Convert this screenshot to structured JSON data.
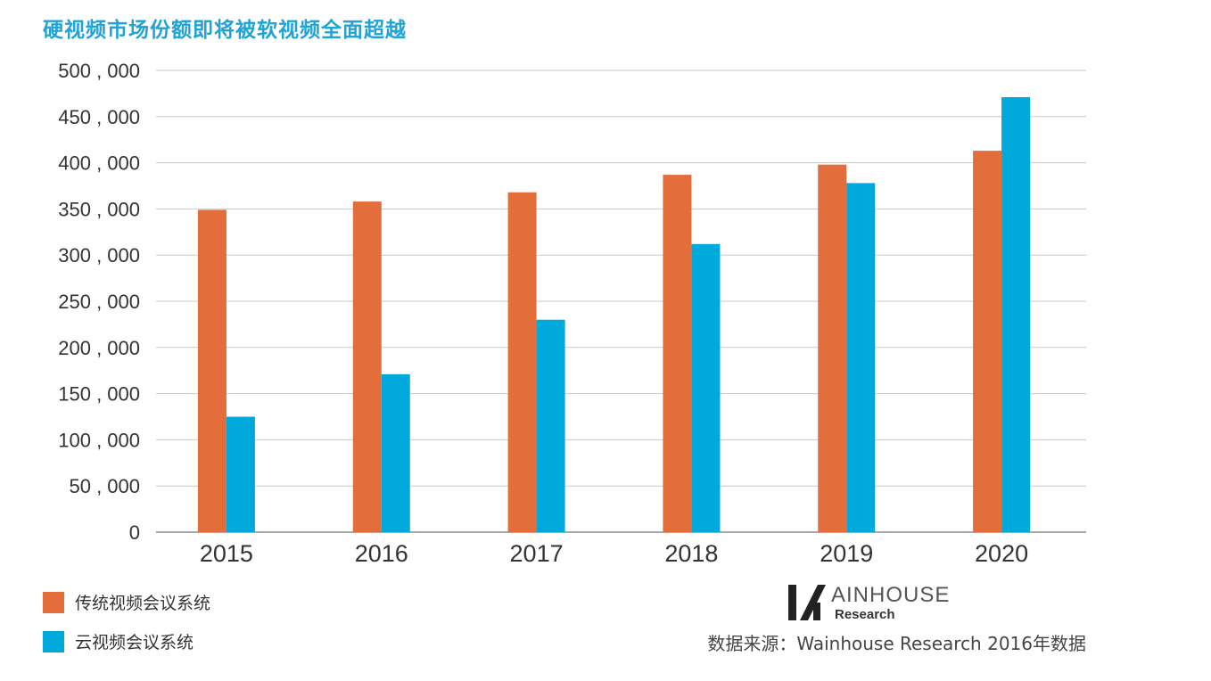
{
  "chart_data": {
    "type": "bar",
    "title": "硬视频市场份额即将被软视频全面超越",
    "categories": [
      "2015",
      "2016",
      "2017",
      "2018",
      "2019",
      "2020"
    ],
    "series": [
      {
        "name": "传统视频会议系统",
        "color": "#e36e3c",
        "values": [
          349000,
          358000,
          368000,
          387000,
          398000,
          413000
        ]
      },
      {
        "name": "云视频会议系统",
        "color": "#00a9dc",
        "values": [
          125000,
          171000,
          230000,
          312000,
          378000,
          471000
        ]
      }
    ],
    "ylim": [
      0,
      500000
    ],
    "ytick_step": 50000,
    "ytick_labels": [
      "0",
      "50 , 000",
      "100 , 000",
      "150 , 000",
      "200 , 000",
      "250 , 000",
      "300 , 000",
      "350 , 000",
      "400 , 000",
      "450 , 000",
      "500 , 000"
    ],
    "grid": true,
    "xlabel": "",
    "ylabel": ""
  },
  "logo": {
    "brand": "AINHOUSE",
    "sub": "Research"
  },
  "source_note": "数据来源：Wainhouse Research 2016年数据"
}
